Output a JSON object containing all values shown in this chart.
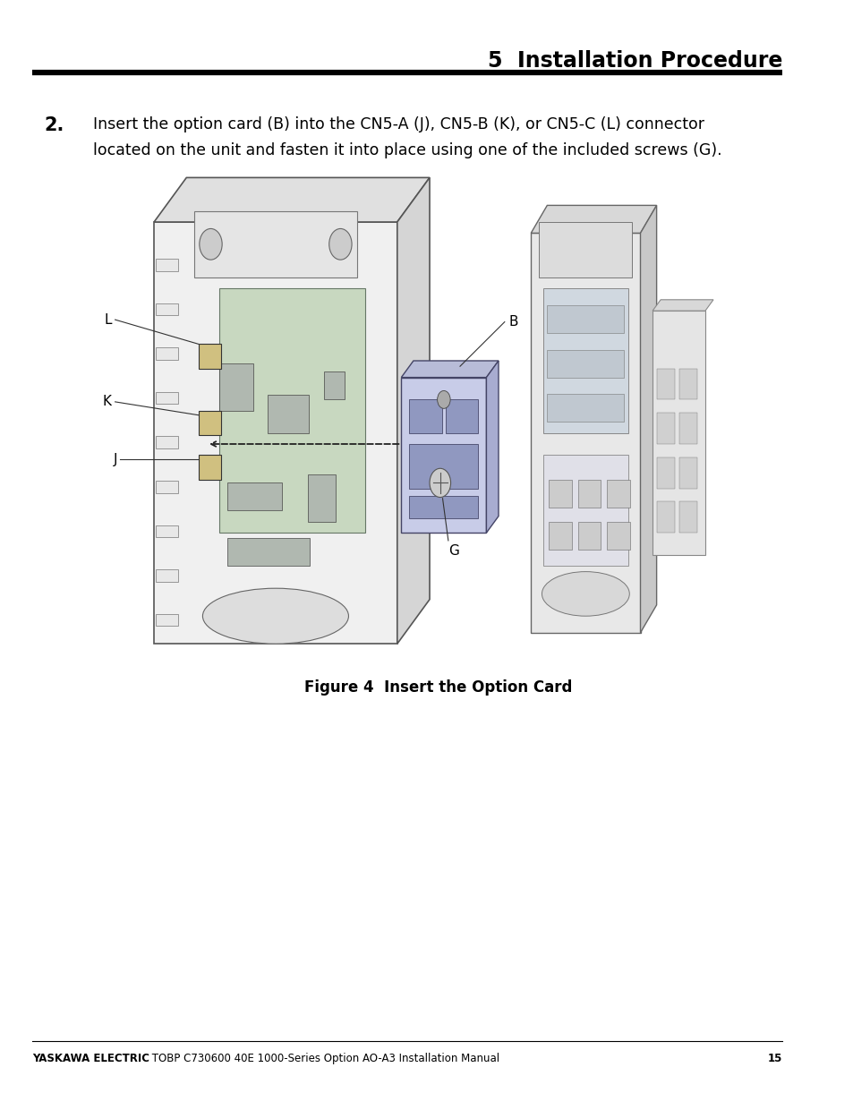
{
  "title": "5  Installation Procedure",
  "step_number": "2.",
  "step_text_line1": "Insert the option card (B) into the CN5-A (J), CN5-B (K), or CN5-C (L) connector",
  "step_text_line2": "located on the unit and fasten it into place using one of the included screws (G).",
  "figure_caption": "Figure 4  Insert the Option Card",
  "footer_bold": "YASKAWA ELECTRIC",
  "footer_normal": " TOBP C730600 40E 1000-Series Option AO-A3 Installation Manual",
  "footer_page": "15",
  "bg_color": "#ffffff",
  "text_color": "#000000",
  "header_line_color": "#000000",
  "footer_line_color": "#000000"
}
